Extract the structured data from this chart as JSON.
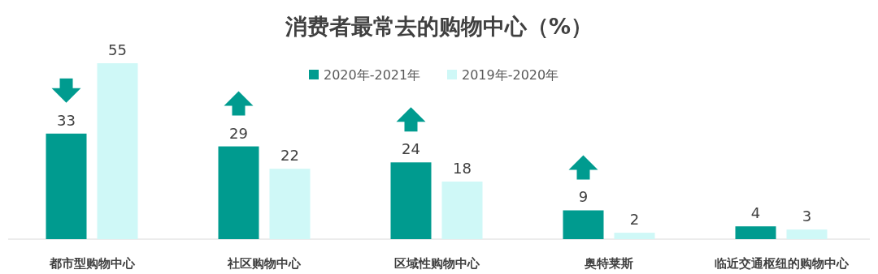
{
  "chart_data": {
    "type": "bar",
    "title": "消费者最常去的购物中心（%）",
    "categories": [
      "都市型购物中心",
      "社区购物中心",
      "区域性购物中心",
      "奥特莱斯",
      "临近交通枢纽的购物中心"
    ],
    "series": [
      {
        "name": "2020年-2021年",
        "color": "#009b8f",
        "values": [
          33,
          29,
          24,
          9,
          4
        ]
      },
      {
        "name": "2019年-2020年",
        "color": "#cff8f7",
        "values": [
          55,
          22,
          18,
          2,
          3
        ]
      }
    ],
    "data_labels": true,
    "legend": "top"
  }
}
